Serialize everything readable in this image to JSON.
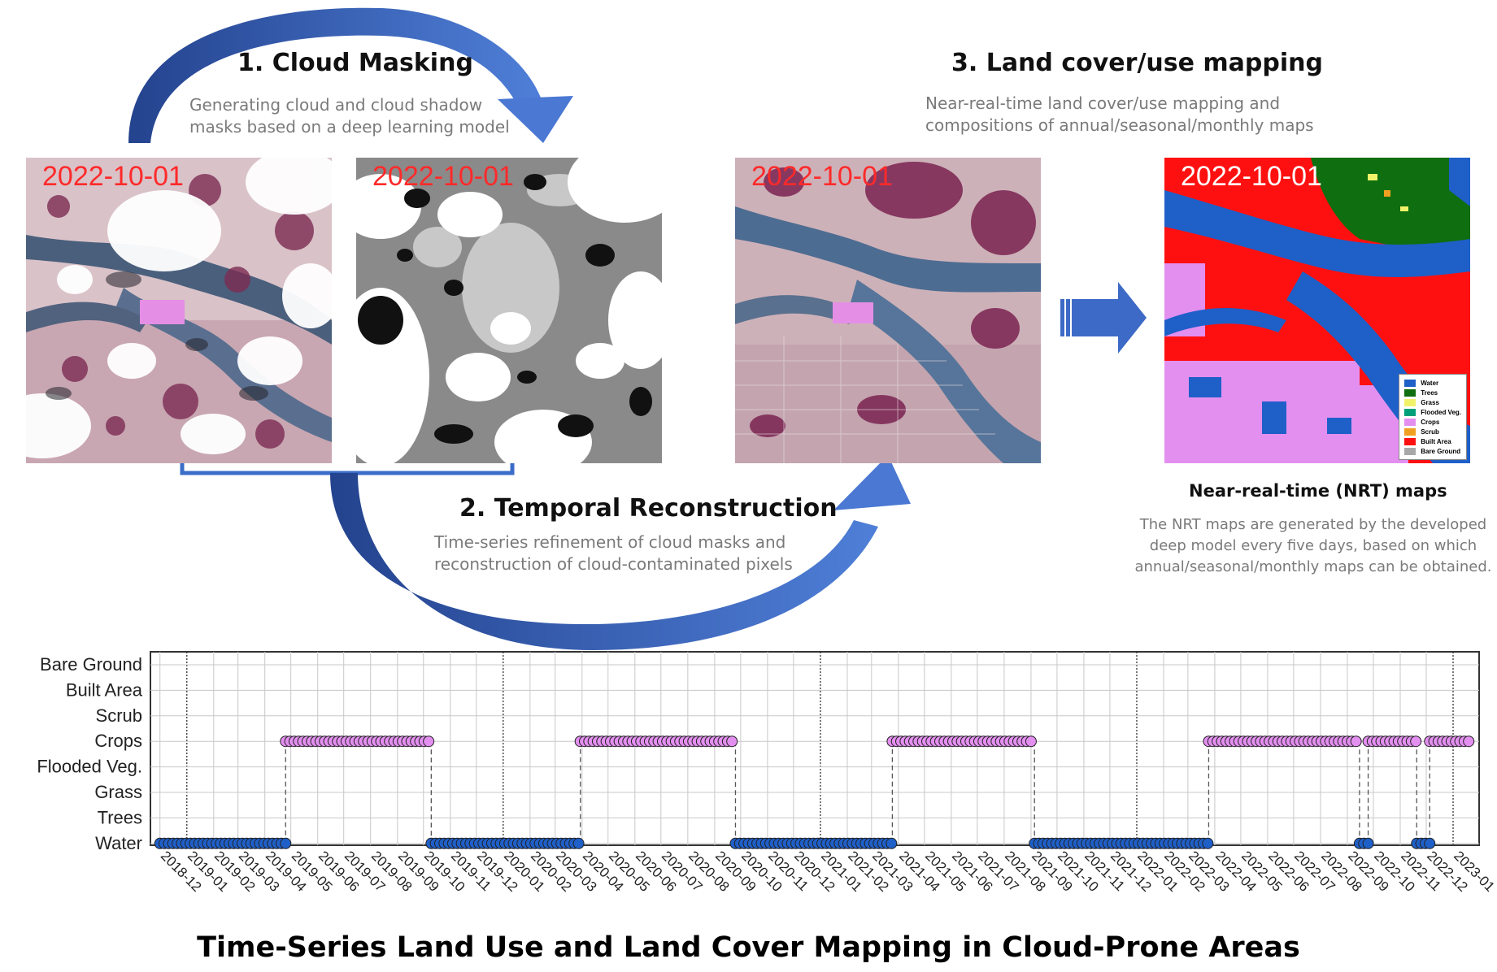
{
  "steps": {
    "cloud_masking": {
      "title": "1. Cloud Masking",
      "desc_line1": "Generating cloud and cloud shadow",
      "desc_line2": "masks based on a deep learning model"
    },
    "temporal_reconstruction": {
      "title": "2. Temporal Reconstruction",
      "desc_line1": "Time-series refinement of cloud masks and",
      "desc_line2": "reconstruction of cloud-contaminated pixels"
    },
    "land_cover_mapping": {
      "title": "3. Land cover/use mapping",
      "desc_line1": "Near-real-time land cover/use mapping and",
      "desc_line2": "compositions of annual/seasonal/monthly maps"
    }
  },
  "panels": {
    "cloudy_image": {
      "date": "2022-10-01"
    },
    "cloud_mask": {
      "date": "2022-10-01"
    },
    "reconstructed_image": {
      "date": "2022-10-01"
    },
    "land_cover_map": {
      "date": "2022-10-01"
    }
  },
  "map_legend": [
    {
      "label": "Water",
      "color": "#1f5fc8"
    },
    {
      "label": "Trees",
      "color": "#0f6e0f"
    },
    {
      "label": "Grass",
      "color": "#f2f26a"
    },
    {
      "label": "Flooded Veg.",
      "color": "#00a07a"
    },
    {
      "label": "Crops",
      "color": "#e38ff0"
    },
    {
      "label": "Scrub",
      "color": "#f0a020"
    },
    {
      "label": "Built Area",
      "color": "#ff1010"
    },
    {
      "label": "Bare Ground",
      "color": "#a8a8a8"
    }
  ],
  "nrt": {
    "title": "Near-real-time (NRT) maps",
    "desc_line1": "The NRT maps are generated by the developed",
    "desc_line2": "deep model every five days, based on which",
    "desc_line3": "annual/seasonal/monthly maps can be obtained."
  },
  "main_title": "Time-Series Land Use and Land Cover Mapping in Cloud-Prone Areas",
  "chart_data": {
    "type": "scatter",
    "categories": [
      "Water",
      "Trees",
      "Grass",
      "Flooded Veg.",
      "Crops",
      "Scrub",
      "Built Area",
      "Bare Ground"
    ],
    "x_ticks": [
      "2018-12",
      "2019-01",
      "2019-02",
      "2019-03",
      "2019-04",
      "2019-05",
      "2019-06",
      "2019-07",
      "2019-08",
      "2019-09",
      "2019-10",
      "2019-11",
      "2019-12",
      "2020-01",
      "2020-02",
      "2020-03",
      "2020-04",
      "2020-05",
      "2020-06",
      "2020-07",
      "2020-08",
      "2020-09",
      "2020-10",
      "2020-11",
      "2020-12",
      "2021-01",
      "2021-02",
      "2021-03",
      "2021-04",
      "2021-05",
      "2021-06",
      "2021-07",
      "2021-08",
      "2021-09",
      "2021-10",
      "2021-11",
      "2021-12",
      "2022-01",
      "2022-02",
      "2022-03",
      "2022-04",
      "2022-05",
      "2022-06",
      "2022-07",
      "2022-08",
      "2022-09",
      "2022-10",
      "2022-11",
      "2022-12",
      "2023-01"
    ],
    "segments": [
      {
        "class": "Water",
        "start": "2018-12-01",
        "end": "2019-04-25"
      },
      {
        "class": "Crops",
        "start": "2019-04-25",
        "end": "2019-10-10"
      },
      {
        "class": "Water",
        "start": "2019-10-10",
        "end": "2020-03-30"
      },
      {
        "class": "Crops",
        "start": "2020-03-30",
        "end": "2020-09-25"
      },
      {
        "class": "Water",
        "start": "2020-09-25",
        "end": "2021-03-25"
      },
      {
        "class": "Crops",
        "start": "2021-03-25",
        "end": "2021-09-05"
      },
      {
        "class": "Water",
        "start": "2021-09-05",
        "end": "2022-03-25"
      },
      {
        "class": "Crops",
        "start": "2022-03-25",
        "end": "2022-09-15"
      },
      {
        "class": "Water",
        "start": "2022-09-15",
        "end": "2022-09-25"
      },
      {
        "class": "Crops",
        "start": "2022-09-25",
        "end": "2022-11-20"
      },
      {
        "class": "Water",
        "start": "2022-11-20",
        "end": "2022-12-05"
      },
      {
        "class": "Crops",
        "start": "2022-12-05",
        "end": "2023-01-20"
      }
    ],
    "colors": {
      "Water": "#1f5fc8",
      "Crops": "#e38ff0"
    },
    "grid": true
  }
}
